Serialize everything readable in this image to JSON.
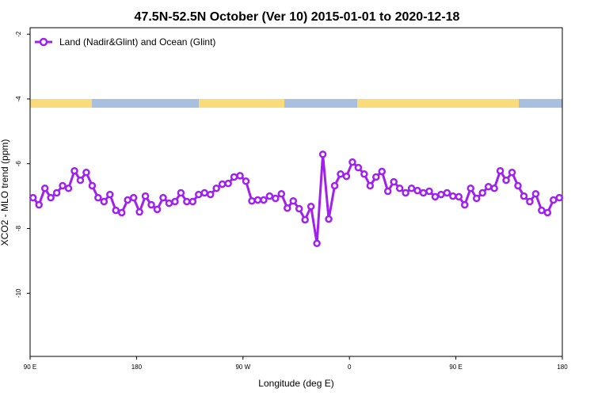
{
  "chart_data": {
    "type": "line",
    "title": "47.5N-52.5N October (Ver 10)   2015-01-01 to 2020-12-18",
    "x_label": "Longitude (deg E)",
    "y_label": "XCO2 - MLO trend (ppm)",
    "xlim": [
      90,
      540
    ],
    "xticks": [
      {
        "value": 90,
        "label": "90 E"
      },
      180,
      {
        "value": 270,
        "label": "90 W"
      },
      {
        "value": 360,
        "label": "0"
      },
      {
        "value": 450,
        "label": "90 E"
      },
      {
        "value": 540,
        "label": "180"
      }
    ],
    "ylim": [
      -11.95,
      -1.8
    ],
    "yticks": [
      -2,
      -4,
      -6,
      -8,
      -10
    ],
    "legend": "top-left",
    "series": [
      {
        "name": "Land (Nadir&Glint) and Ocean (Glint)",
        "color": "#a020f0",
        "x": [
          92.5,
          97.5,
          102.5,
          107.5,
          112.5,
          117.5,
          122.5,
          127.5,
          132.5,
          137.5,
          142.5,
          147.5,
          152.5,
          157.5,
          162.5,
          167.5,
          172.5,
          177.5,
          182.5,
          187.5,
          192.5,
          197.5,
          202.5,
          207.5,
          212.5,
          217.5,
          222.5,
          227.5,
          232.5,
          237.5,
          242.5,
          247.5,
          252.5,
          257.5,
          262.5,
          267.5,
          272.5,
          277.5,
          282.5,
          287.5,
          292.5,
          297.5,
          302.5,
          307.5,
          312.5,
          317.5,
          322.5,
          327.5,
          332.5,
          337.5,
          342.5,
          347.5,
          352.5,
          357.5,
          362.5,
          367.5,
          372.5,
          377.5,
          382.5,
          387.5,
          392.5,
          397.5,
          402.5,
          407.5,
          412.5,
          417.5,
          422.5,
          427.5,
          432.5,
          437.5,
          442.5,
          447.5,
          452.5,
          457.5,
          462.5,
          467.5,
          472.5,
          477.5,
          482.5,
          487.5,
          492.5,
          497.5,
          502.5,
          507.5,
          512.5,
          517.5,
          522.5,
          527.5,
          532.5,
          537.5
        ],
        "values": [
          -7.05,
          -7.27,
          -6.76,
          -7.05,
          -6.9,
          -6.68,
          -6.76,
          -6.22,
          -6.51,
          -6.27,
          -6.68,
          -7.05,
          -7.17,
          -6.95,
          -7.44,
          -7.51,
          -7.12,
          -7.05,
          -7.49,
          -7.0,
          -7.27,
          -7.41,
          -7.05,
          -7.22,
          -7.17,
          -6.9,
          -7.17,
          -7.17,
          -6.95,
          -6.9,
          -6.95,
          -6.76,
          -6.63,
          -6.61,
          -6.41,
          -6.37,
          -6.54,
          -7.15,
          -7.12,
          -7.12,
          -7.0,
          -7.07,
          -6.93,
          -7.37,
          -7.15,
          -7.39,
          -7.73,
          -7.32,
          -8.46,
          -5.71,
          -7.71,
          -6.68,
          -6.32,
          -6.39,
          -5.95,
          -6.12,
          -6.32,
          -6.68,
          -6.41,
          -6.24,
          -6.85,
          -6.56,
          -6.76,
          -6.9,
          -6.76,
          -6.83,
          -6.9,
          -6.85,
          -7.02,
          -6.95,
          -6.9,
          -7.0,
          -7.02,
          -7.27,
          -6.76,
          -7.07,
          -6.9,
          -6.71,
          -6.76,
          -6.22,
          -6.51,
          -6.27,
          -6.68,
          -7.0,
          -7.17,
          -6.93,
          -7.44,
          -7.51,
          -7.12,
          -7.05
        ]
      }
    ]
  }
}
